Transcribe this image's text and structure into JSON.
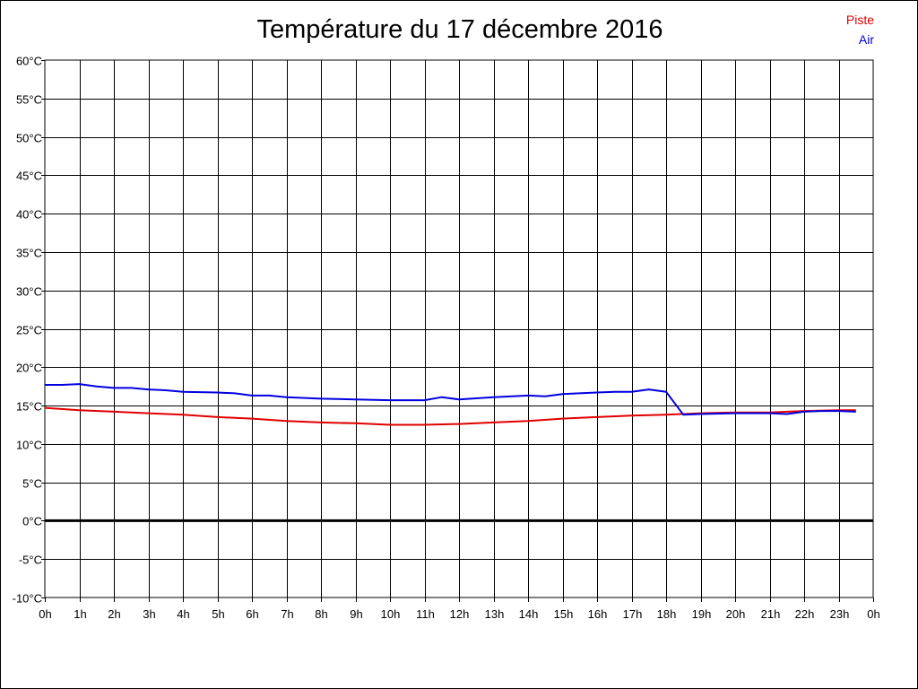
{
  "chart_data": {
    "type": "line",
    "title": "Température du 17 décembre 2016",
    "xlabel": "",
    "ylabel": "",
    "x_ticks": [
      "0h",
      "1h",
      "2h",
      "3h",
      "4h",
      "5h",
      "6h",
      "7h",
      "8h",
      "9h",
      "10h",
      "11h",
      "12h",
      "13h",
      "14h",
      "15h",
      "16h",
      "17h",
      "18h",
      "19h",
      "20h",
      "21h",
      "22h",
      "23h",
      "0h"
    ],
    "y_ticks": [
      "60°C",
      "55°C",
      "50°C",
      "45°C",
      "40°C",
      "35°C",
      "30°C",
      "25°C",
      "20°C",
      "15°C",
      "10°C",
      "5°C",
      "0°C",
      "-5°C",
      "-10°C"
    ],
    "xlim": [
      0,
      24
    ],
    "ylim": [
      -10,
      60
    ],
    "grid": true,
    "legend_position": "top-right",
    "series": [
      {
        "name": "Piste",
        "color": "#e00000",
        "points": [
          [
            0,
            14.7
          ],
          [
            1,
            14.4
          ],
          [
            2,
            14.2
          ],
          [
            3,
            14.0
          ],
          [
            4,
            13.8
          ],
          [
            5,
            13.5
          ],
          [
            6,
            13.3
          ],
          [
            7,
            13.0
          ],
          [
            8,
            12.8
          ],
          [
            9,
            12.7
          ],
          [
            10,
            12.5
          ],
          [
            11,
            12.5
          ],
          [
            12,
            12.6
          ],
          [
            13,
            12.8
          ],
          [
            14,
            13.0
          ],
          [
            15,
            13.3
          ],
          [
            16,
            13.5
          ],
          [
            17,
            13.7
          ],
          [
            18,
            13.8
          ],
          [
            19,
            14.0
          ],
          [
            20,
            14.1
          ],
          [
            21,
            14.1
          ],
          [
            22,
            14.3
          ],
          [
            23,
            14.4
          ],
          [
            23.5,
            14.4
          ]
        ]
      },
      {
        "name": "Air",
        "color": "#0000e0",
        "points": [
          [
            0,
            17.7
          ],
          [
            0.5,
            17.7
          ],
          [
            1,
            17.8
          ],
          [
            1.5,
            17.5
          ],
          [
            2,
            17.3
          ],
          [
            2.5,
            17.3
          ],
          [
            3,
            17.1
          ],
          [
            3.5,
            17.0
          ],
          [
            4,
            16.8
          ],
          [
            5,
            16.7
          ],
          [
            5.5,
            16.6
          ],
          [
            6,
            16.3
          ],
          [
            6.5,
            16.3
          ],
          [
            7,
            16.1
          ],
          [
            8,
            15.9
          ],
          [
            9,
            15.8
          ],
          [
            10,
            15.7
          ],
          [
            11,
            15.7
          ],
          [
            11.5,
            16.1
          ],
          [
            12,
            15.8
          ],
          [
            13,
            16.1
          ],
          [
            14,
            16.3
          ],
          [
            14.5,
            16.2
          ],
          [
            15,
            16.5
          ],
          [
            16,
            16.7
          ],
          [
            16.5,
            16.8
          ],
          [
            17,
            16.8
          ],
          [
            17.5,
            17.1
          ],
          [
            18,
            16.8
          ],
          [
            18.5,
            13.8
          ],
          [
            19,
            13.9
          ],
          [
            20,
            14.0
          ],
          [
            21,
            14.0
          ],
          [
            21.5,
            13.9
          ],
          [
            22,
            14.2
          ],
          [
            22.5,
            14.3
          ],
          [
            23,
            14.3
          ],
          [
            23.5,
            14.2
          ]
        ]
      }
    ],
    "zero_line": 0
  }
}
